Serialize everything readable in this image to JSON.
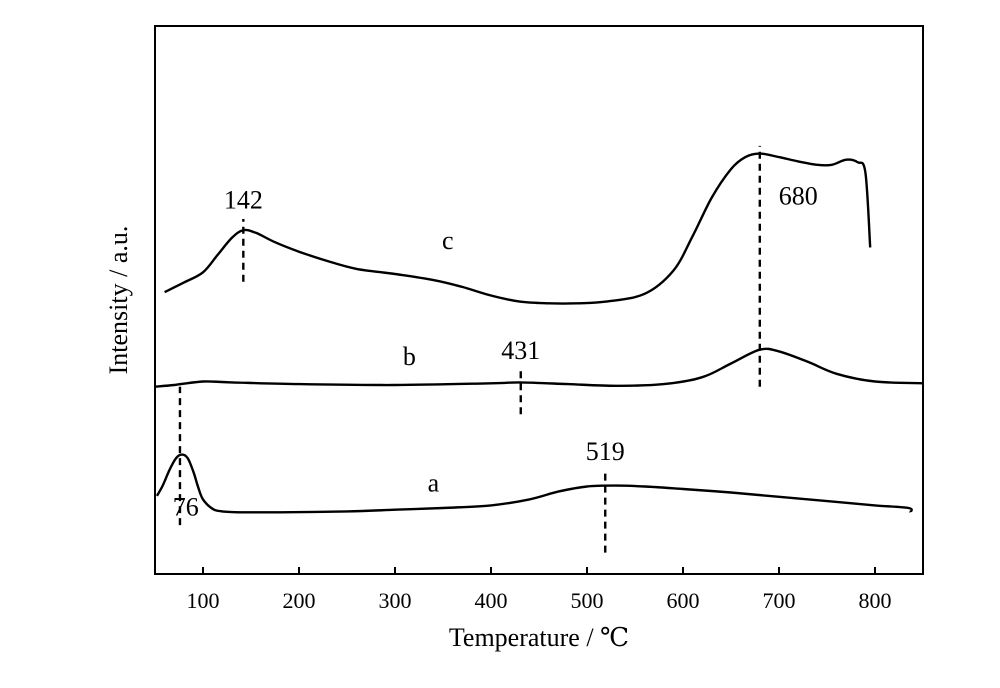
{
  "chart_data": {
    "type": "line",
    "xlabel": "Temperature / ℃",
    "ylabel": "Intensity / a.u.",
    "xlim": [
      50,
      850
    ],
    "x_ticks": [
      100,
      200,
      300,
      400,
      500,
      600,
      700,
      800
    ],
    "x_tick_labels": [
      "100",
      "200",
      "300",
      "400",
      "500",
      "600",
      "700",
      "800"
    ],
    "y_ticks_shown": false,
    "grid": false,
    "legend": "none",
    "line_color": "#000000",
    "series": [
      {
        "name": "a",
        "x": [
          52,
          58,
          65,
          72,
          78,
          84,
          90,
          95,
          100,
          110,
          120,
          140,
          180,
          250,
          300,
          350,
          400,
          440,
          470,
          500,
          530,
          560,
          600,
          650,
          700,
          750,
          800,
          835,
          837
        ],
        "y": [
          0.28,
          0.4,
          0.58,
          0.72,
          0.76,
          0.72,
          0.56,
          0.38,
          0.24,
          0.13,
          0.1,
          0.09,
          0.09,
          0.1,
          0.12,
          0.14,
          0.17,
          0.24,
          0.33,
          0.39,
          0.4,
          0.39,
          0.36,
          0.32,
          0.27,
          0.22,
          0.17,
          0.14,
          0.09
        ]
      },
      {
        "name": "b",
        "x": [
          50,
          70,
          100,
          130,
          200,
          300,
          400,
          430,
          480,
          530,
          580,
          620,
          650,
          680,
          700,
          730,
          760,
          800,
          850
        ],
        "y": [
          1.55,
          1.57,
          1.61,
          1.6,
          1.58,
          1.57,
          1.59,
          1.6,
          1.58,
          1.56,
          1.58,
          1.66,
          1.82,
          1.98,
          1.96,
          1.84,
          1.7,
          1.61,
          1.59
        ]
      },
      {
        "name": "c",
        "x": [
          60,
          80,
          100,
          115,
          130,
          142,
          155,
          175,
          200,
          230,
          260,
          300,
          340,
          370,
          400,
          430,
          460,
          490,
          520,
          560,
          590,
          610,
          630,
          650,
          665,
          680,
          700,
          720,
          740,
          755,
          770,
          782,
          790,
          795
        ],
        "y": [
          2.65,
          2.76,
          2.88,
          3.08,
          3.28,
          3.37,
          3.34,
          3.23,
          3.12,
          3.01,
          2.92,
          2.86,
          2.79,
          2.71,
          2.61,
          2.54,
          2.52,
          2.52,
          2.54,
          2.63,
          2.9,
          3.3,
          3.75,
          4.08,
          4.22,
          4.26,
          4.22,
          4.17,
          4.13,
          4.13,
          4.19,
          4.16,
          4.04,
          3.17
        ]
      }
    ],
    "series_labels": [
      {
        "text": "a",
        "x": 340,
        "y": 0.33
      },
      {
        "text": "b",
        "x": 315,
        "y": 1.8
      },
      {
        "text": "c",
        "x": 355,
        "y": 3.15
      }
    ],
    "annotations": [
      {
        "text": "76",
        "x": 76,
        "line_y": [
          -0.06,
          1.55
        ],
        "label_x": 82,
        "label_y": 0.05
      },
      {
        "text": "519",
        "x": 519,
        "line_y": [
          -0.38,
          0.58
        ],
        "label_x": 519,
        "label_y": 0.7
      },
      {
        "text": "431",
        "x": 431,
        "line_y": [
          1.23,
          1.75
        ],
        "label_x": 431,
        "label_y": 1.87
      },
      {
        "text": "142",
        "x": 142,
        "line_y": [
          2.77,
          3.5
        ],
        "label_x": 142,
        "label_y": 3.62
      },
      {
        "text": "680",
        "x": 680,
        "line_y": [
          1.55,
          4.35
        ],
        "label_x": 720,
        "label_y": 3.67
      }
    ]
  }
}
